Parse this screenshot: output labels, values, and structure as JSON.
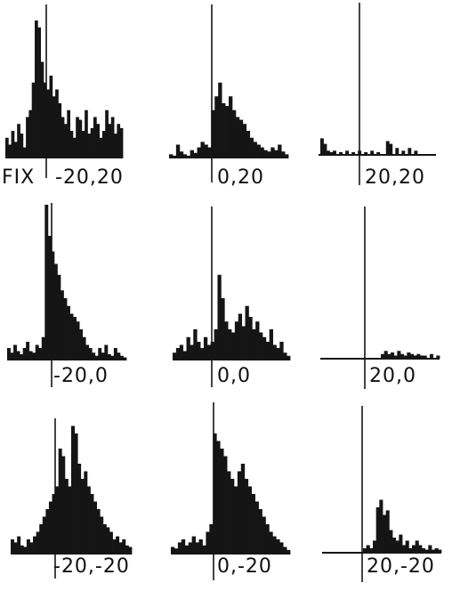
{
  "figure": {
    "fix_label": "FIX",
    "ink_color": "#151515",
    "background": "#ffffff"
  },
  "chart_data": [
    {
      "type": "bar",
      "label": "-20,20",
      "baseline_visible": false,
      "title": "",
      "xlabel": "",
      "ylabel": "",
      "values": [
        0.15,
        0.1,
        0.2,
        0.12,
        0.25,
        0.18,
        0.08,
        0.3,
        0.35,
        0.55,
        1.0,
        0.95,
        0.7,
        0.55,
        0.5,
        0.6,
        0.45,
        0.5,
        0.4,
        0.3,
        0.25,
        0.35,
        0.2,
        0.15,
        0.3,
        0.28,
        0.2,
        0.35,
        0.18,
        0.22,
        0.3,
        0.25,
        0.15,
        0.2,
        0.35,
        0.25,
        0.3,
        0.18,
        0.25,
        0.22
      ]
    },
    {
      "type": "bar",
      "label": "0,20",
      "baseline_visible": false,
      "title": "",
      "xlabel": "",
      "ylabel": "",
      "values": [
        0.03,
        0.02,
        0.1,
        0.05,
        0.03,
        0.02,
        0.06,
        0.04,
        0.08,
        0.12,
        0.1,
        0.08,
        0.35,
        0.45,
        0.55,
        0.4,
        0.38,
        0.45,
        0.35,
        0.3,
        0.28,
        0.25,
        0.2,
        0.15,
        0.12,
        0.1,
        0.08,
        0.06,
        0.05,
        0.08,
        0.06,
        0.1,
        0.05,
        0.03
      ]
    },
    {
      "type": "bar",
      "label": "20,20",
      "baseline_visible": true,
      "title": "",
      "xlabel": "",
      "ylabel": "",
      "values": [
        0.12,
        0.08,
        0.03,
        0.02,
        0.03,
        0.0,
        0.02,
        0.0,
        0.03,
        0.0,
        0.02,
        0.0,
        0.03,
        0.0,
        0.02,
        0.0,
        0.03,
        0.0,
        0.02,
        0.0,
        0.0,
        0.1,
        0.08,
        0.0,
        0.05,
        0.0,
        0.03,
        0.0,
        0.05,
        0.0,
        0.03,
        0.0,
        0.0,
        0.0,
        0.0,
        0.0,
        0.0
      ]
    },
    {
      "type": "bar",
      "label": "-20,0",
      "baseline_visible": false,
      "title": "",
      "xlabel": "",
      "ylabel": "",
      "values": [
        0.08,
        0.05,
        0.1,
        0.06,
        0.04,
        0.08,
        0.12,
        0.06,
        0.05,
        0.1,
        0.08,
        0.15,
        1.0,
        0.8,
        0.7,
        0.62,
        0.55,
        0.45,
        0.4,
        0.35,
        0.3,
        0.28,
        0.25,
        0.2,
        0.15,
        0.1,
        0.08,
        0.05,
        0.03,
        0.08,
        0.05,
        0.1,
        0.04,
        0.03,
        0.08,
        0.05,
        0.03,
        0.02
      ]
    },
    {
      "type": "bar",
      "label": "0,0",
      "baseline_visible": false,
      "title": "",
      "xlabel": "",
      "ylabel": "",
      "values": [
        0.05,
        0.08,
        0.1,
        0.06,
        0.15,
        0.1,
        0.2,
        0.12,
        0.08,
        0.15,
        0.1,
        0.12,
        0.2,
        0.55,
        0.4,
        0.25,
        0.2,
        0.18,
        0.25,
        0.3,
        0.22,
        0.35,
        0.28,
        0.2,
        0.25,
        0.18,
        0.15,
        0.12,
        0.2,
        0.1,
        0.08,
        0.12,
        0.05,
        0.03
      ]
    },
    {
      "type": "bar",
      "label": "20,0",
      "baseline_visible": true,
      "title": "",
      "xlabel": "",
      "ylabel": "",
      "values": [
        0.0,
        0.0,
        0.0,
        0.0,
        0.0,
        0.0,
        0.0,
        0.0,
        0.0,
        0.0,
        0.0,
        0.0,
        0.0,
        0.0,
        0.0,
        0.0,
        0.0,
        0.0,
        0.03,
        0.05,
        0.03,
        0.04,
        0.02,
        0.05,
        0.03,
        0.02,
        0.04,
        0.03,
        0.02,
        0.03,
        0.02,
        0.02,
        0.0,
        0.03,
        0.0,
        0.02
      ]
    },
    {
      "type": "bar",
      "label": "-20,-20",
      "baseline_visible": false,
      "title": "",
      "xlabel": "",
      "ylabel": "",
      "values": [
        0.1,
        0.08,
        0.12,
        0.06,
        0.05,
        0.1,
        0.08,
        0.12,
        0.15,
        0.2,
        0.25,
        0.3,
        0.35,
        0.4,
        0.45,
        0.7,
        0.65,
        0.5,
        0.45,
        0.85,
        0.8,
        0.6,
        0.5,
        0.55,
        0.45,
        0.4,
        0.35,
        0.3,
        0.25,
        0.2,
        0.18,
        0.15,
        0.1,
        0.12,
        0.08,
        0.1,
        0.06,
        0.05
      ]
    },
    {
      "type": "bar",
      "label": "0,-20",
      "baseline_visible": false,
      "title": "",
      "xlabel": "",
      "ylabel": "",
      "values": [
        0.05,
        0.04,
        0.08,
        0.1,
        0.06,
        0.08,
        0.12,
        0.08,
        0.1,
        0.06,
        0.15,
        0.2,
        0.8,
        0.75,
        0.7,
        0.65,
        0.55,
        0.5,
        0.45,
        0.55,
        0.6,
        0.5,
        0.45,
        0.4,
        0.35,
        0.3,
        0.25,
        0.2,
        0.15,
        0.12,
        0.1,
        0.08,
        0.05,
        0.03
      ]
    },
    {
      "type": "bar",
      "label": "20,-20",
      "baseline_visible": true,
      "title": "",
      "xlabel": "",
      "ylabel": "",
      "values": [
        0.0,
        0.0,
        0.0,
        0.0,
        0.0,
        0.0,
        0.0,
        0.0,
        0.0,
        0.0,
        0.0,
        0.0,
        0.03,
        0.05,
        0.03,
        0.08,
        0.3,
        0.35,
        0.25,
        0.28,
        0.15,
        0.1,
        0.08,
        0.12,
        0.05,
        0.08,
        0.03,
        0.05,
        0.08,
        0.05,
        0.03,
        0.02,
        0.05,
        0.02,
        0.03,
        0.02
      ]
    }
  ]
}
